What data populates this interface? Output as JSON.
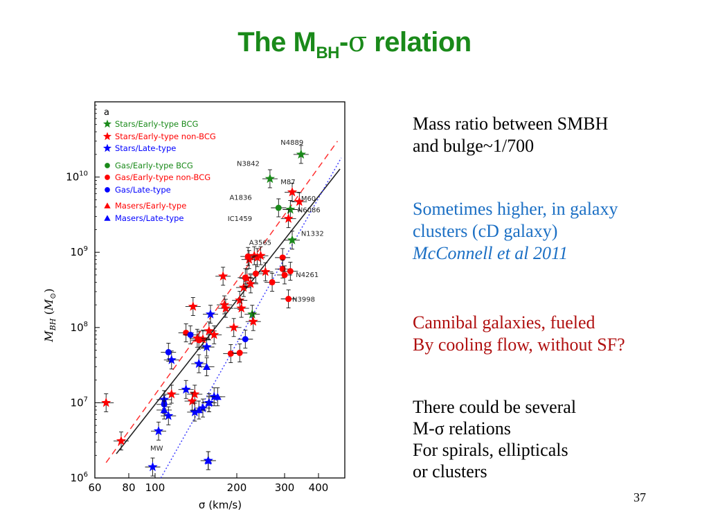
{
  "slide": {
    "title_main": "The M",
    "title_sub": "BH",
    "title_dash": "-",
    "title_sigma": "σ",
    "title_rest": " relation",
    "page_number": "37",
    "text_blocks": [
      {
        "color": "#000000",
        "lines": [
          "Mass ratio between SMBH",
          "and bulge~1/700"
        ]
      },
      {
        "color": "#1b6fc4",
        "lines": [
          "Sometimes higher, in galaxy",
          "clusters (cD galaxy)",
          "McConnell et al 2011"
        ]
      },
      {
        "color": "#b01010",
        "lines": [
          "Cannibal galaxies, fueled",
          "By cooling flow, without SF?"
        ]
      },
      {
        "color": "#000000",
        "lines": [
          "There could be several",
          "M-σ relations",
          "For spirals, ellipticals",
          "or clusters"
        ]
      }
    ]
  },
  "chart_data": {
    "type": "scatter",
    "panel_label": "a",
    "xlabel": "σ (km/s)",
    "ylabel": "M_BH (M_⊙)",
    "x_scale": "log",
    "y_scale": "log",
    "xlim": [
      60,
      500
    ],
    "ylim": [
      1000000,
      100000000000
    ],
    "x_ticks": [
      60,
      80,
      100,
      200,
      300,
      400
    ],
    "y_ticks": [
      1000000,
      10000000,
      100000000,
      1000000000,
      10000000000
    ],
    "y_tick_labels": [
      "10",
      "10",
      "10",
      "10",
      "10"
    ],
    "y_tick_exponents": [
      "6",
      "7",
      "8",
      "9",
      "10"
    ],
    "legend_position": "top-left",
    "legend": [
      {
        "label": "Stars/Early-type BCG",
        "marker": "star",
        "color": "#1a8a1a"
      },
      {
        "label": "Stars/Early-type non-BCG",
        "marker": "star",
        "color": "#ff0000"
      },
      {
        "label": "Stars/Late-type",
        "marker": "star",
        "color": "#0000ff"
      },
      {
        "label": "Gas/Early-type BCG",
        "marker": "circle",
        "color": "#1a8a1a"
      },
      {
        "label": "Gas/Early-type non-BCG",
        "marker": "circle",
        "color": "#ff0000"
      },
      {
        "label": "Gas/Late-type",
        "marker": "circle",
        "color": "#0000ff"
      },
      {
        "label": "Masers/Early-type",
        "marker": "triangle",
        "color": "#ff0000"
      },
      {
        "label": "Masers/Late-type",
        "marker": "triangle",
        "color": "#0000ff"
      }
    ],
    "fit_lines": [
      {
        "style": "solid",
        "color": "#222222",
        "points": [
          [
            72,
            2100000
          ],
          [
            480,
            12800000000
          ]
        ]
      },
      {
        "style": "dashed",
        "color": "#ff3030",
        "points": [
          [
            66,
            1600000
          ],
          [
            470,
            30000000000
          ]
        ]
      },
      {
        "style": "dotted",
        "color": "#4040ff",
        "points": [
          [
            105,
            1000000
          ],
          [
            485,
            18000000000
          ]
        ]
      }
    ],
    "annotations": [
      {
        "text": "N4889",
        "x": 290,
        "y": 27000000000
      },
      {
        "text": "N3842",
        "x": 200,
        "y": 14000000000
      },
      {
        "text": "M87",
        "x": 290,
        "y": 8000000000
      },
      {
        "text": "A1836",
        "x": 188,
        "y": 5000000000
      },
      {
        "text": "M60",
        "x": 345,
        "y": 4800000000
      },
      {
        "text": "N6086",
        "x": 335,
        "y": 3400000000
      },
      {
        "text": "IC1459",
        "x": 185,
        "y": 2600000000
      },
      {
        "text": "N1332",
        "x": 345,
        "y": 1650000000
      },
      {
        "text": "A3565",
        "x": 222,
        "y": 1250000000
      },
      {
        "text": "N4261",
        "x": 330,
        "y": 470000000
      },
      {
        "text": "N3998",
        "x": 320,
        "y": 220000000
      },
      {
        "text": "MW",
        "x": 96,
        "y": 2300000
      }
    ],
    "series": [
      {
        "name": "Stars/Early-type BCG",
        "marker": "star",
        "color": "#1a8a1a",
        "points": [
          [
            345,
            20000000000
          ],
          [
            265,
            9500000000
          ],
          [
            315,
            3700000000
          ],
          [
            320,
            1450000000
          ],
          [
            228,
            150000000
          ]
        ]
      },
      {
        "name": "Stars/Early-type non-BCG",
        "marker": "star",
        "color": "#ff0000",
        "points": [
          [
            66,
            10000000
          ],
          [
            75,
            3100000
          ],
          [
            115,
            13000000
          ],
          [
            138,
            190000000
          ],
          [
            150,
            70000000
          ],
          [
            158,
            90000000
          ],
          [
            165,
            80000000
          ],
          [
            178,
            480000000
          ],
          [
            180,
            200000000
          ],
          [
            182,
            180000000
          ],
          [
            195,
            100000000
          ],
          [
            205,
            230000000
          ],
          [
            208,
            180000000
          ],
          [
            212,
            340000000
          ],
          [
            218,
            450000000
          ],
          [
            222,
            800000000
          ],
          [
            225,
            380000000
          ],
          [
            230,
            120000000
          ],
          [
            232,
            900000000
          ],
          [
            238,
            850000000
          ],
          [
            245,
            900000000
          ],
          [
            255,
            550000000
          ],
          [
            310,
            2800000000
          ],
          [
            320,
            6300000000
          ],
          [
            340,
            4700000000
          ],
          [
            140,
            13000000
          ],
          [
            137,
            10500000
          ],
          [
            143,
            72000000
          ]
        ]
      },
      {
        "name": "Stars/Late-type",
        "marker": "star",
        "color": "#0000ff",
        "points": [
          [
            98,
            1400000
          ],
          [
            103,
            4200000
          ],
          [
            108,
            11000000
          ],
          [
            112,
            6700000
          ],
          [
            115,
            37000000
          ],
          [
            130,
            15000000
          ],
          [
            140,
            7500000
          ],
          [
            145,
            33000000
          ],
          [
            150,
            8500000
          ],
          [
            155,
            55000000
          ],
          [
            158,
            10000000
          ],
          [
            160,
            150000000
          ],
          [
            165,
            12000000
          ],
          [
            157,
            1700000
          ]
        ]
      },
      {
        "name": "Gas/Early-type BCG",
        "marker": "circle",
        "color": "#1a8a1a",
        "points": [
          [
            285,
            3900000000
          ]
        ]
      },
      {
        "name": "Gas/Early-type non-BCG",
        "marker": "circle",
        "color": "#ff0000",
        "points": [
          [
            130,
            85000000
          ],
          [
            145,
            68000000
          ],
          [
            190,
            45000000
          ],
          [
            205,
            46000000
          ],
          [
            215,
            460000000
          ],
          [
            235,
            520000000
          ],
          [
            270,
            400000000
          ],
          [
            295,
            850000000
          ],
          [
            295,
            600000000
          ],
          [
            300,
            500000000
          ],
          [
            310,
            240000000
          ],
          [
            315,
            560000000
          ],
          [
            220,
            880000000
          ]
        ]
      },
      {
        "name": "Gas/Late-type",
        "marker": "circle",
        "color": "#0000ff",
        "points": [
          [
            108,
            9500000
          ],
          [
            112,
            47000000
          ],
          [
            135,
            80000000
          ],
          [
            215,
            70000000
          ]
        ]
      },
      {
        "name": "Masers/Early-type",
        "marker": "triangle",
        "color": "#ff0000",
        "points": []
      },
      {
        "name": "Masers/Late-type",
        "marker": "triangle",
        "color": "#0000ff",
        "points": [
          [
            108,
            8000000
          ],
          [
            145,
            8000000
          ],
          [
            155,
            30000000
          ],
          [
            158,
            10000000
          ],
          [
            170,
            12000000
          ],
          [
            157,
            1700000
          ]
        ]
      }
    ]
  }
}
